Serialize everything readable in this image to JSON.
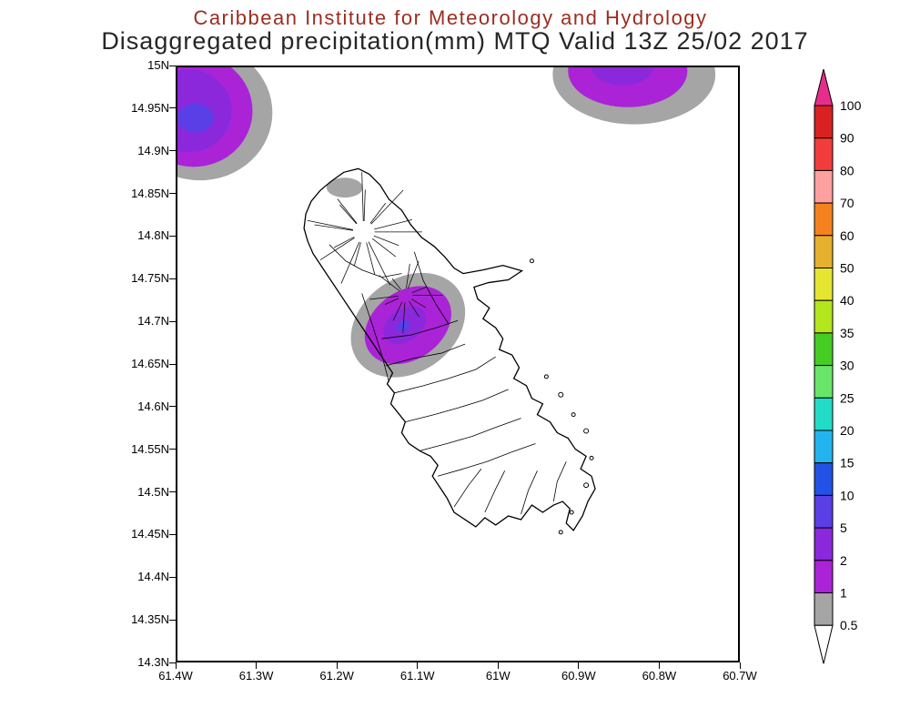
{
  "header": {
    "line1": "Caribbean Institute for Meteorology and Hydrology",
    "line2": "Disaggregated precipitation(mm) MTQ Valid 13Z 25/02 2017"
  },
  "axes": {
    "y_ticks": [
      "15N",
      "14.95N",
      "14.9N",
      "14.85N",
      "14.8N",
      "14.75N",
      "14.7N",
      "14.65N",
      "14.6N",
      "14.55N",
      "14.5N",
      "14.45N",
      "14.4N",
      "14.35N",
      "14.3N"
    ],
    "x_ticks": [
      "61.4W",
      "61.3W",
      "61.2W",
      "61.1W",
      "61W",
      "60.9W",
      "60.8W",
      "60.7W"
    ]
  },
  "colorbar": {
    "labels": [
      "100",
      "90",
      "80",
      "70",
      "60",
      "50",
      "40",
      "35",
      "30",
      "25",
      "20",
      "15",
      "10",
      "5",
      "2",
      "1",
      "0.5"
    ],
    "colors": [
      "#d92121",
      "#f23d3d",
      "#ffa0a0",
      "#f5821f",
      "#e6af2d",
      "#e6e632",
      "#b4e61e",
      "#46cd23",
      "#69e669",
      "#23dcc8",
      "#23b4f0",
      "#2353e6",
      "#5a3fe6",
      "#8c28dc",
      "#aa23d7",
      "#a5a5a5"
    ],
    "arrow_top_color": "#e62d8c",
    "arrow_bottom_color": "#ffffff"
  },
  "chart_data": {
    "type": "filled-contour-map",
    "title": "Disaggregated precipitation(mm) MTQ Valid 13Z 25/02 2017",
    "institute": "Caribbean Institute for Meteorology and Hydrology",
    "region": "Martinique (MTQ)",
    "variable": "Disaggregated precipitation (mm)",
    "valid_time": "13Z 25/02 2017",
    "lon_range": [
      "61.4W",
      "60.7W"
    ],
    "lat_range": [
      "14.3N",
      "15N"
    ],
    "levels_mm": [
      0.5,
      1,
      2,
      5,
      10,
      15,
      20,
      25,
      30,
      35,
      40,
      50,
      60,
      70,
      80,
      90,
      100
    ],
    "legend_position": "right",
    "grid": false,
    "features": [
      {
        "name": "precip cell northwest offshore corner",
        "approx_center": "61.37W, 14.93N",
        "peak_band_mm": "5-10"
      },
      {
        "name": "precip cell northeast offshore at top edge",
        "approx_center": "60.85W, 15N",
        "peak_band_mm": "2-5"
      },
      {
        "name": "precip cell over central Martinique",
        "approx_center": "61.11W, 14.70N",
        "peak_band_mm": "5-10"
      },
      {
        "name": "light precip patch over northern Martinique",
        "approx_center": "61.19W, 14.85N",
        "peak_band_mm": "0.5-1"
      }
    ]
  }
}
